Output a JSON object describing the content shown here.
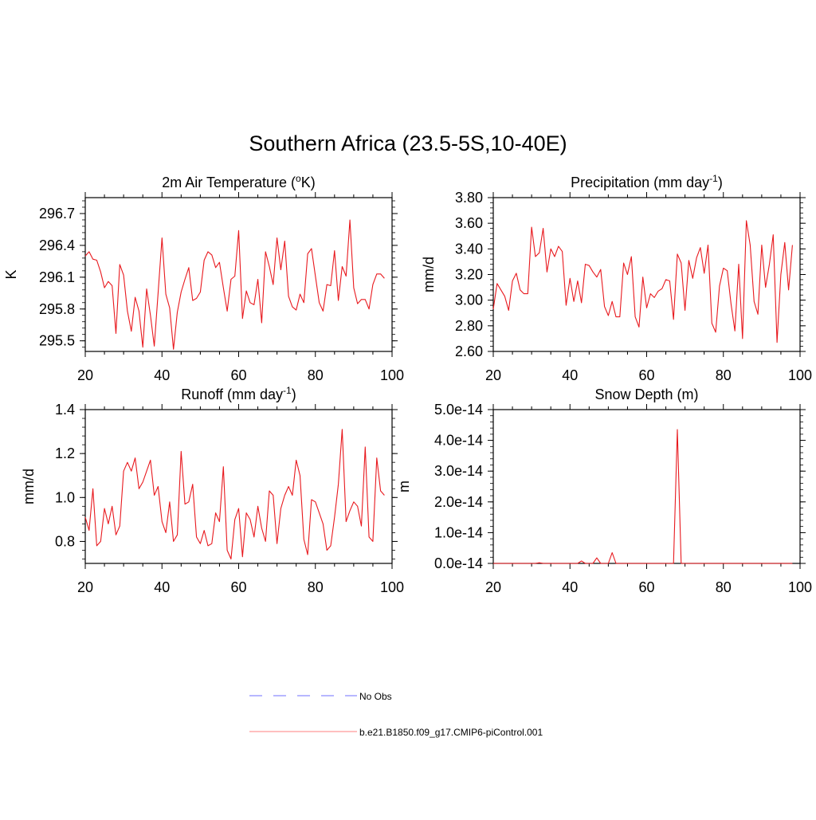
{
  "title": "Southern Africa (23.5-5S,10-40E)",
  "colors": {
    "model_line": "#e8191e",
    "obs_line": "#8c8cff",
    "axis": "#000000"
  },
  "legend": [
    {
      "label": "No Obs",
      "style": "dashed",
      "color": "#8c8cff"
    },
    {
      "label": "b.e21.B1850.f09_g17.CMIP6-piControl.001",
      "style": "solid",
      "color": "#ff9999"
    }
  ],
  "chart_data": [
    {
      "id": "temp",
      "type": "line",
      "title": "2m Air Temperature (",
      "title_sup": "o",
      "title_tail": "K)",
      "ylabel": "K",
      "xlim": [
        20,
        100
      ],
      "ylim": [
        295.4,
        296.85
      ],
      "xticks": [
        20,
        40,
        60,
        80,
        100
      ],
      "yticks": [
        295.5,
        295.8,
        296.1,
        296.4,
        296.7
      ],
      "ytick_labels": [
        "295.5",
        "295.8",
        "296.1",
        "296.4",
        "296.7"
      ],
      "x_start": 20,
      "values": [
        296.3,
        296.34,
        296.27,
        296.26,
        296.15,
        296.0,
        296.06,
        296.02,
        295.57,
        296.22,
        296.12,
        295.78,
        295.59,
        295.91,
        295.78,
        295.44,
        295.99,
        295.74,
        295.45,
        295.95,
        296.47,
        295.94,
        295.81,
        295.42,
        295.77,
        295.96,
        296.08,
        296.19,
        295.88,
        295.9,
        295.96,
        296.26,
        296.34,
        296.31,
        296.19,
        296.24,
        296.0,
        295.78,
        296.08,
        296.11,
        296.54,
        295.71,
        295.97,
        295.86,
        295.84,
        296.08,
        295.67,
        296.34,
        296.2,
        296.03,
        296.47,
        296.17,
        296.44,
        295.92,
        295.82,
        295.79,
        295.94,
        295.86,
        296.32,
        296.37,
        296.11,
        295.86,
        295.78,
        296.03,
        296.02,
        296.35,
        295.88,
        296.2,
        296.11,
        296.64,
        296.0,
        295.85,
        295.89,
        295.89,
        295.8,
        296.03,
        296.13,
        296.13,
        296.09
      ]
    },
    {
      "id": "precip",
      "type": "line",
      "title": "Precipitation (mm day",
      "title_sup": "-1",
      "title_tail": ")",
      "ylabel": "mm/d",
      "xlim": [
        20,
        100
      ],
      "ylim": [
        2.6,
        3.8
      ],
      "xticks": [
        20,
        40,
        60,
        80,
        100
      ],
      "yticks": [
        2.6,
        2.8,
        3.0,
        3.2,
        3.4,
        3.6,
        3.8
      ],
      "ytick_labels": [
        "2.60",
        "2.80",
        "3.00",
        "3.20",
        "3.40",
        "3.60",
        "3.80"
      ],
      "x_start": 20,
      "values": [
        2.93,
        3.13,
        3.08,
        3.03,
        2.92,
        3.15,
        3.21,
        3.08,
        3.05,
        3.05,
        3.57,
        3.34,
        3.37,
        3.56,
        3.22,
        3.4,
        3.34,
        3.42,
        3.38,
        2.96,
        3.17,
        2.99,
        3.15,
        2.98,
        3.28,
        3.27,
        3.22,
        3.18,
        3.24,
        2.95,
        2.88,
        2.99,
        2.87,
        2.87,
        3.29,
        3.2,
        3.34,
        2.87,
        2.79,
        3.18,
        2.94,
        3.05,
        3.02,
        3.07,
        3.09,
        3.16,
        3.15,
        2.85,
        3.36,
        3.29,
        2.92,
        3.31,
        3.17,
        3.33,
        3.41,
        3.21,
        3.43,
        2.82,
        2.75,
        3.11,
        3.25,
        3.23,
        2.97,
        2.76,
        3.28,
        2.7,
        3.62,
        3.43,
        2.99,
        2.89,
        3.43,
        3.1,
        3.28,
        3.51,
        2.67,
        3.2,
        3.45,
        3.08,
        3.43
      ]
    },
    {
      "id": "runoff",
      "type": "line",
      "title": "Runoff (mm day",
      "title_sup": "-1",
      "title_tail": ")",
      "ylabel": "mm/d",
      "xlim": [
        20,
        100
      ],
      "ylim": [
        0.7,
        1.4
      ],
      "xticks": [
        20,
        40,
        60,
        80,
        100
      ],
      "yticks": [
        0.8,
        1.0,
        1.2,
        1.4
      ],
      "ytick_labels": [
        "0.8",
        "1.0",
        "1.2",
        "1.4"
      ],
      "x_start": 20,
      "values": [
        0.91,
        0.85,
        1.04,
        0.78,
        0.8,
        0.95,
        0.88,
        0.96,
        0.83,
        0.87,
        1.12,
        1.16,
        1.12,
        1.18,
        1.04,
        1.07,
        1.12,
        1.17,
        1.01,
        1.05,
        0.89,
        0.84,
        0.98,
        0.8,
        0.83,
        1.21,
        0.97,
        0.98,
        1.06,
        0.82,
        0.79,
        0.85,
        0.78,
        0.79,
        0.93,
        0.89,
        1.14,
        0.76,
        0.72,
        0.9,
        0.95,
        0.73,
        0.93,
        0.9,
        0.82,
        0.96,
        0.86,
        0.8,
        1.03,
        1.01,
        0.79,
        0.95,
        1.01,
        1.05,
        1.01,
        1.17,
        1.1,
        0.81,
        0.74,
        0.99,
        0.98,
        0.93,
        0.88,
        0.76,
        0.78,
        0.91,
        1.06,
        1.31,
        0.89,
        0.94,
        0.98,
        0.96,
        0.87,
        1.23,
        0.82,
        0.8,
        1.18,
        1.03,
        1.01
      ]
    },
    {
      "id": "snow",
      "type": "line",
      "title": "Snow Depth (m)",
      "title_sup": "",
      "title_tail": "",
      "ylabel": "m",
      "xlim": [
        20,
        100
      ],
      "ylim": [
        0,
        5e-14
      ],
      "xticks": [
        20,
        40,
        60,
        80,
        100
      ],
      "yticks": [
        0,
        1e-14,
        2e-14,
        3e-14,
        4e-14,
        5e-14
      ],
      "ytick_labels": [
        "0.0e-14",
        "1.0e-14",
        "2.0e-14",
        "3.0e-14",
        "4.0e-14",
        "5.0e-14"
      ],
      "x_start": 20,
      "values": [
        0,
        0,
        0,
        0,
        0,
        0,
        0,
        0,
        0,
        0,
        0,
        0,
        2e-16,
        0,
        0,
        0,
        0,
        0,
        0,
        0,
        0,
        0,
        0,
        8e-16,
        0,
        0,
        0,
        1.8e-15,
        0,
        0,
        0,
        3.5e-15,
        0,
        0,
        0,
        0,
        0,
        0,
        0,
        0,
        0,
        0,
        0,
        0,
        0,
        0,
        0,
        0,
        4.35e-14,
        0,
        0,
        0,
        0,
        0,
        0,
        0,
        0,
        0,
        0,
        0,
        0,
        0,
        0,
        0,
        0,
        0,
        0,
        0,
        0,
        0,
        0,
        0,
        0,
        0,
        0,
        0,
        0,
        0,
        0
      ]
    }
  ]
}
